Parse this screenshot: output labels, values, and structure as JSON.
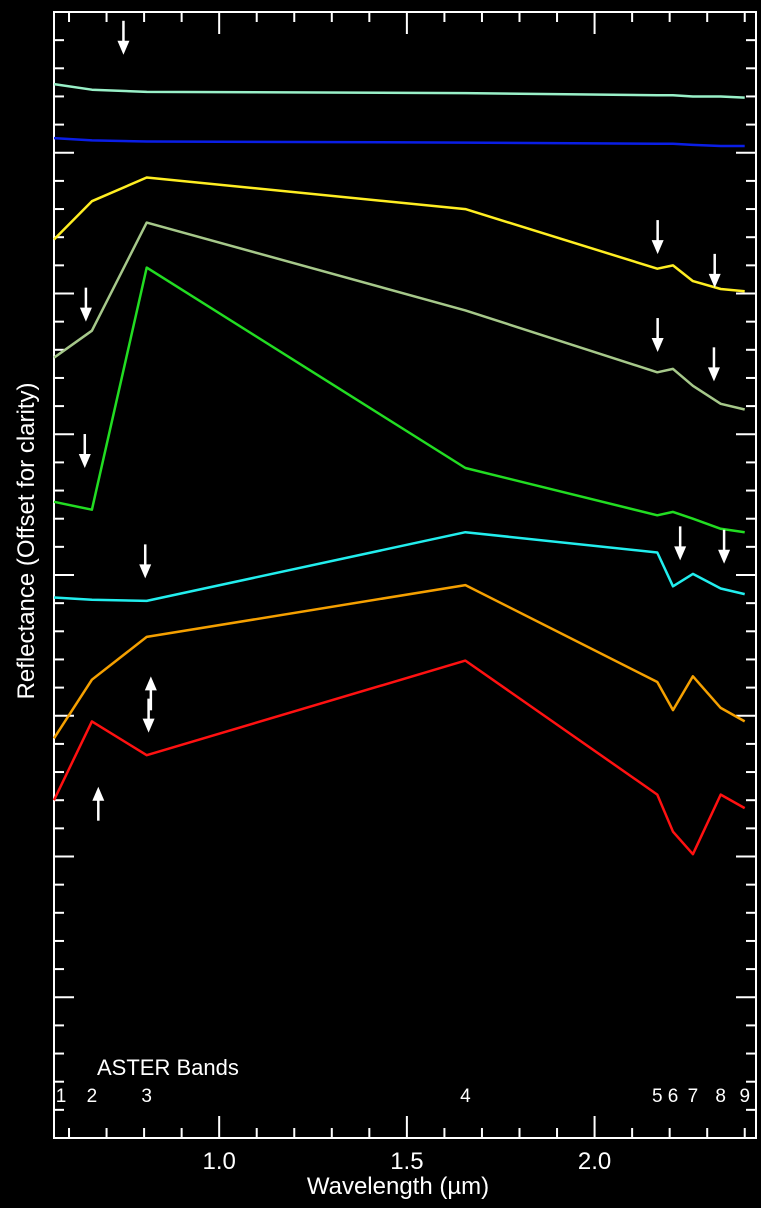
{
  "chart_data": {
    "type": "line",
    "title": "",
    "xlabel": "Wavelength (µm)",
    "ylabel": "Reflectance (Offset for clarity)",
    "xlim": [
      0.56,
      2.43
    ],
    "ylim": [
      0,
      100
    ],
    "grid": false,
    "x_ticks": [
      1.0,
      1.5,
      2.0
    ],
    "x_tick_labels": [
      "1.0",
      "1.5",
      "2.0"
    ],
    "bands_label": "ASTER Bands",
    "bands": [
      {
        "label": "1",
        "x": 0.56
      },
      {
        "label": "2",
        "x": 0.661
      },
      {
        "label": "3",
        "x": 0.807
      },
      {
        "label": "4",
        "x": 1.656
      },
      {
        "label": "5",
        "x": 2.167
      },
      {
        "label": "6",
        "x": 2.209
      },
      {
        "label": "7",
        "x": 2.262
      },
      {
        "label": "8",
        "x": 2.336
      },
      {
        "label": "9",
        "x": 2.4
      }
    ],
    "series": [
      {
        "color": "#99f0c8",
        "x": [
          0.56,
          0.661,
          0.807,
          1.656,
          2.167,
          2.209,
          2.262,
          2.336,
          2.4
        ],
        "y": [
          93.6,
          93.1,
          92.9,
          92.8,
          92.6,
          92.6,
          92.5,
          92.5,
          92.4
        ]
      },
      {
        "color": "#0a1ee6",
        "x": [
          0.56,
          0.661,
          0.807,
          1.656,
          2.167,
          2.209,
          2.262,
          2.336,
          2.4
        ],
        "y": [
          88.8,
          88.6,
          88.5,
          88.4,
          88.3,
          88.3,
          88.2,
          88.1,
          88.1
        ]
      },
      {
        "color": "#ffee22",
        "x": [
          0.56,
          0.661,
          0.807,
          1.656,
          2.167,
          2.209,
          2.262,
          2.336,
          2.4
        ],
        "y": [
          79.8,
          83.2,
          85.3,
          82.5,
          77.2,
          77.5,
          76.1,
          75.4,
          75.2
        ]
      },
      {
        "color": "#a6c88a",
        "x": [
          0.56,
          0.661,
          0.807,
          1.656,
          2.167,
          2.209,
          2.262,
          2.336,
          2.4
        ],
        "y": [
          69.3,
          71.7,
          81.3,
          73.5,
          68.0,
          68.3,
          66.8,
          65.2,
          64.7
        ]
      },
      {
        "color": "#22dd22",
        "x": [
          0.56,
          0.661,
          0.807,
          1.656,
          2.167,
          2.209,
          2.262,
          2.336,
          2.4
        ],
        "y": [
          56.5,
          55.8,
          77.3,
          59.5,
          55.3,
          55.6,
          55.0,
          54.1,
          53.8
        ]
      },
      {
        "color": "#22eeee",
        "x": [
          0.56,
          0.661,
          0.807,
          1.656,
          2.167,
          2.209,
          2.262,
          2.336,
          2.4
        ],
        "y": [
          48.0,
          47.8,
          47.7,
          53.8,
          52.0,
          49.0,
          50.1,
          48.8,
          48.3
        ]
      },
      {
        "color": "#f5a000",
        "x": [
          0.56,
          0.661,
          0.807,
          1.656,
          2.167,
          2.209,
          2.262,
          2.336,
          2.4
        ],
        "y": [
          35.5,
          40.7,
          44.5,
          49.1,
          40.5,
          38.0,
          41.0,
          38.2,
          37.0
        ]
      },
      {
        "color": "#ff1111",
        "x": [
          0.56,
          0.661,
          0.807,
          1.656,
          2.167,
          2.209,
          2.262,
          2.336,
          2.4
        ],
        "y": [
          30.0,
          37.0,
          34.0,
          42.4,
          30.5,
          27.2,
          25.2,
          30.5,
          29.3
        ]
      }
    ],
    "arrows": [
      {
        "direction": "down",
        "x": 0.745,
        "y": 96.2
      },
      {
        "direction": "down",
        "x": 2.168,
        "y": 78.5
      },
      {
        "direction": "down",
        "x": 2.32,
        "y": 75.5
      },
      {
        "direction": "down",
        "x": 0.645,
        "y": 72.5
      },
      {
        "direction": "down",
        "x": 2.168,
        "y": 69.8
      },
      {
        "direction": "down",
        "x": 2.318,
        "y": 67.2
      },
      {
        "direction": "down",
        "x": 0.642,
        "y": 59.5
      },
      {
        "direction": "down",
        "x": 2.228,
        "y": 51.3
      },
      {
        "direction": "down",
        "x": 2.345,
        "y": 51.0
      },
      {
        "direction": "down",
        "x": 0.803,
        "y": 49.7
      },
      {
        "direction": "up",
        "x": 0.818,
        "y": 41.0
      },
      {
        "direction": "down",
        "x": 0.812,
        "y": 36.0
      },
      {
        "direction": "up",
        "x": 0.678,
        "y": 31.2
      }
    ]
  }
}
